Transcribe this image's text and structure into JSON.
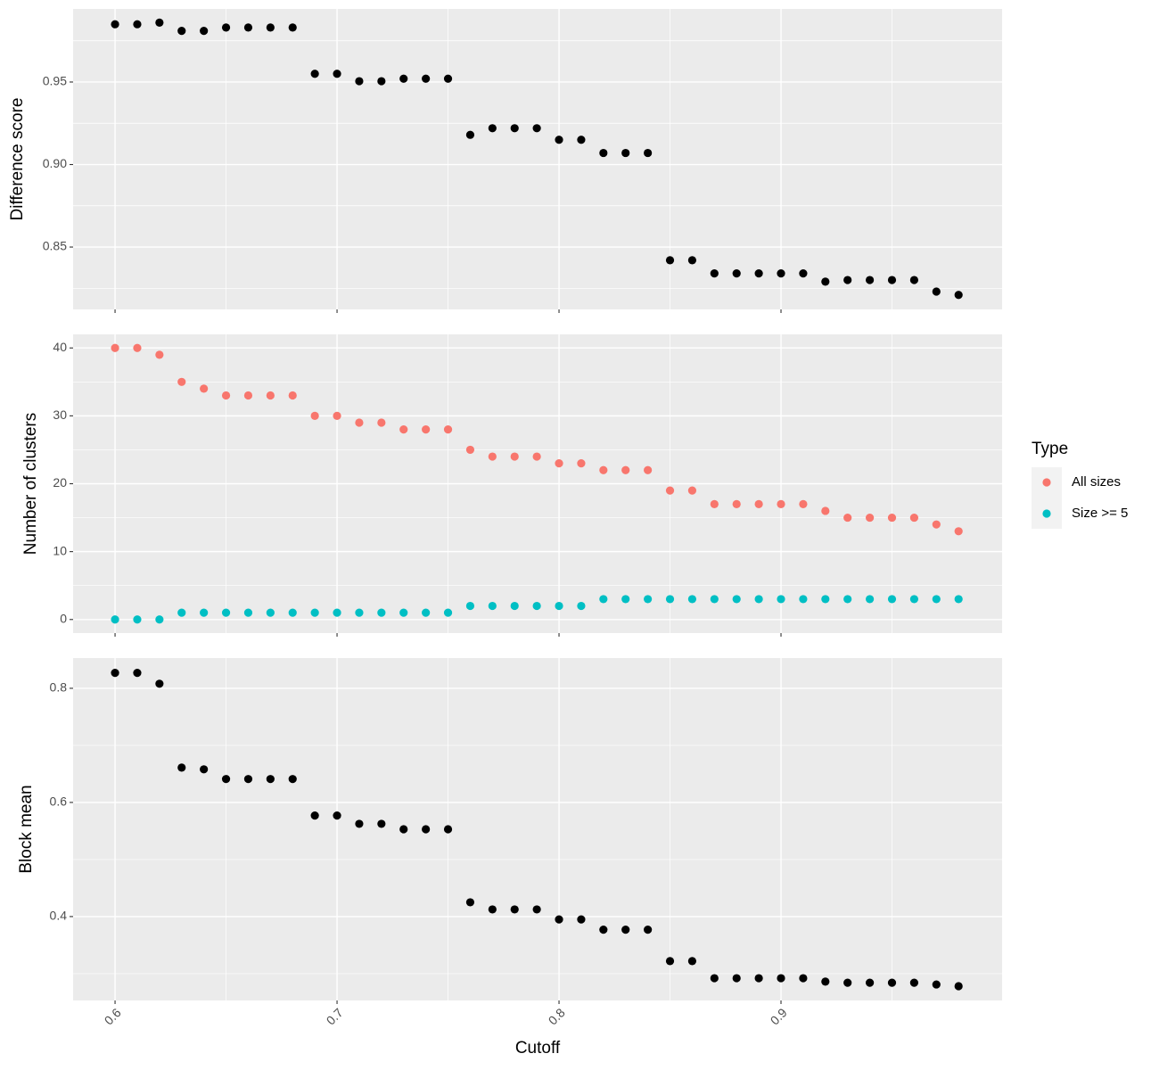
{
  "chart_data": [
    {
      "type": "scatter",
      "y_label": "Difference score",
      "color": "#000000",
      "grid": true,
      "x": [
        0.6,
        0.61,
        0.62,
        0.63,
        0.64,
        0.65,
        0.66,
        0.67,
        0.68,
        0.69,
        0.7,
        0.71,
        0.72,
        0.73,
        0.74,
        0.75,
        0.76,
        0.77,
        0.78,
        0.79,
        0.8,
        0.81,
        0.82,
        0.83,
        0.84,
        0.85,
        0.86,
        0.87,
        0.88,
        0.89,
        0.9,
        0.91,
        0.92,
        0.93,
        0.94,
        0.95,
        0.96,
        0.97,
        0.98
      ],
      "values": [
        0.985,
        0.985,
        0.986,
        0.981,
        0.981,
        0.983,
        0.983,
        0.983,
        0.983,
        0.955,
        0.955,
        0.9505,
        0.9505,
        0.952,
        0.952,
        0.952,
        0.918,
        0.922,
        0.922,
        0.922,
        0.915,
        0.915,
        0.907,
        0.907,
        0.907,
        0.842,
        0.842,
        0.834,
        0.834,
        0.834,
        0.834,
        0.834,
        0.829,
        0.83,
        0.83,
        0.83,
        0.83,
        0.823,
        0.821
      ],
      "xlim": [
        0.5811,
        0.9996
      ],
      "xticks": [
        0.6,
        0.7,
        0.8,
        0.9
      ],
      "ylim": [
        0.8122,
        0.9943
      ],
      "yticks": [
        0.85,
        {
          "value": 0.9,
          "label": "0.90"
        },
        0.95
      ]
    },
    {
      "type": "scatter",
      "y_label": "Number of clusters",
      "legend_title": "Type",
      "legend": "right",
      "grid": true,
      "x": [
        0.6,
        0.61,
        0.62,
        0.63,
        0.64,
        0.65,
        0.66,
        0.67,
        0.68,
        0.69,
        0.7,
        0.71,
        0.72,
        0.73,
        0.74,
        0.75,
        0.76,
        0.77,
        0.78,
        0.79,
        0.8,
        0.81,
        0.82,
        0.83,
        0.84,
        0.85,
        0.86,
        0.87,
        0.88,
        0.89,
        0.9,
        0.91,
        0.92,
        0.93,
        0.94,
        0.95,
        0.96,
        0.97,
        0.98
      ],
      "series": [
        {
          "name": "All sizes",
          "color": "#F8766D",
          "values": [
            40,
            40,
            39,
            35,
            34,
            33,
            33,
            33,
            33,
            30,
            30,
            29,
            29,
            28,
            28,
            28,
            25,
            24,
            24,
            24,
            23,
            23,
            22,
            22,
            22,
            19,
            19,
            17,
            17,
            17,
            17,
            17,
            16,
            15,
            15,
            15,
            15,
            14,
            13
          ]
        },
        {
          "name": "Size >= 5",
          "color": "#00BFC4",
          "values": [
            0,
            0,
            0,
            1,
            1,
            1,
            1,
            1,
            1,
            1,
            1,
            1,
            1,
            1,
            1,
            1,
            2,
            2,
            2,
            2,
            2,
            2,
            3,
            3,
            3,
            3,
            3,
            3,
            3,
            3,
            3,
            3,
            3,
            3,
            3,
            3,
            3,
            3,
            3
          ]
        }
      ],
      "xlim": [
        0.5811,
        0.9996
      ],
      "xticks": [
        0.6,
        0.7,
        0.8,
        0.9
      ],
      "ylim": [
        -2,
        42
      ],
      "yticks": [
        0,
        10,
        20,
        30,
        40
      ]
    },
    {
      "type": "scatter",
      "y_label": "Block mean",
      "x_label": "Cutoff",
      "color": "#000000",
      "grid": true,
      "x": [
        0.6,
        0.61,
        0.62,
        0.63,
        0.64,
        0.65,
        0.66,
        0.67,
        0.68,
        0.69,
        0.7,
        0.71,
        0.72,
        0.73,
        0.74,
        0.75,
        0.76,
        0.77,
        0.78,
        0.79,
        0.8,
        0.81,
        0.82,
        0.83,
        0.84,
        0.85,
        0.86,
        0.87,
        0.88,
        0.89,
        0.9,
        0.91,
        0.92,
        0.93,
        0.94,
        0.95,
        0.96,
        0.97,
        0.98
      ],
      "values": [
        0.827,
        0.827,
        0.808,
        0.661,
        0.658,
        0.641,
        0.641,
        0.641,
        0.641,
        0.577,
        0.577,
        0.5625,
        0.5625,
        0.553,
        0.553,
        0.553,
        0.425,
        0.4125,
        0.4125,
        0.4125,
        0.395,
        0.395,
        0.377,
        0.377,
        0.377,
        0.322,
        0.322,
        0.292,
        0.292,
        0.292,
        0.292,
        0.292,
        0.286,
        0.284,
        0.284,
        0.284,
        0.284,
        0.281,
        0.278
      ],
      "xlim": [
        0.5811,
        0.9996
      ],
      "xticks": [
        0.6,
        0.7,
        0.8,
        0.9
      ],
      "ylim": [
        0.253,
        0.853
      ],
      "yticks": [
        0.4,
        0.6,
        0.8
      ]
    }
  ]
}
